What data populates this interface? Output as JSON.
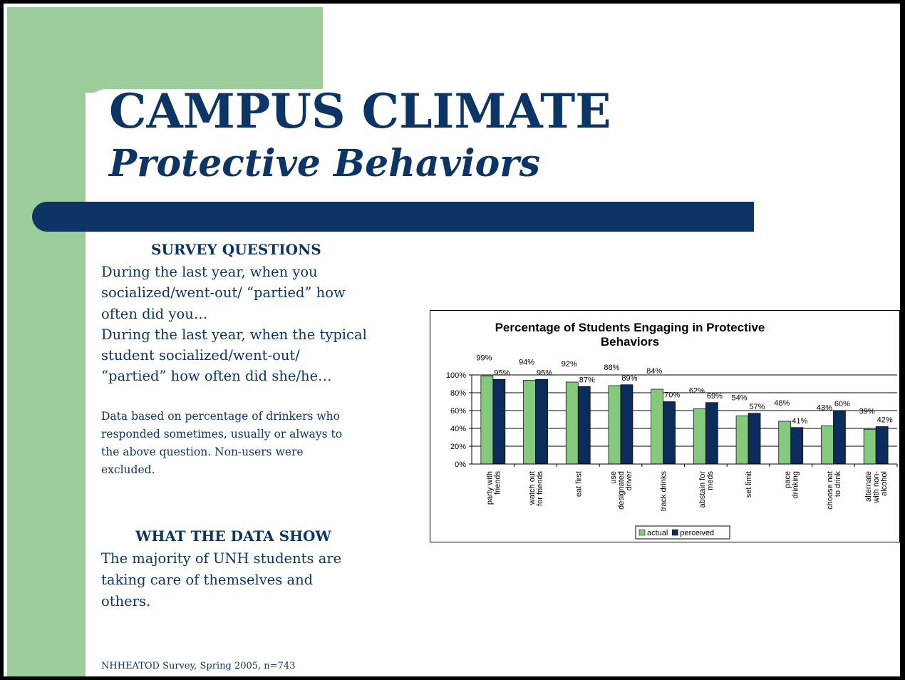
{
  "slide": {
    "title": "CAMPUS CLIMATE",
    "subtitle": "Protective Behaviors",
    "survey_heading": "SURVEY QUESTIONS",
    "survey_lines": [
      "During the last year, when you",
      "socialized/went-out/ “partied” how",
      "often did you…",
      "During the last year, when the typical",
      "student socialized/went-out/",
      "“partied” how often did she/he…"
    ],
    "note_lines": [
      "Data based on percentage of drinkers who",
      "responded sometimes, usually or always to",
      "the above question. Non-users were",
      "excluded."
    ],
    "data_heading": "WHAT THE DATA SHOW",
    "data_lines": [
      "The majority of UNH students are",
      "taking care of themselves and",
      "others."
    ],
    "source": "NHHEATOD Survey, Spring 2005, n=743"
  },
  "chart_data": {
    "type": "bar",
    "title": "Percentage of Students Engaging in Protective Behaviors",
    "categories": [
      [
        "party with",
        "friends"
      ],
      [
        "watch out",
        "for friends"
      ],
      [
        "eat first"
      ],
      [
        "use",
        "designated",
        "driver"
      ],
      [
        "track drinks"
      ],
      [
        "abstain for",
        "meds"
      ],
      [
        "set limit"
      ],
      [
        "pace",
        "drinking"
      ],
      [
        "choose not",
        "to drink"
      ],
      [
        "alternate",
        "with non-",
        "alcohol"
      ]
    ],
    "series": [
      {
        "name": "actual",
        "color": "#84c97e",
        "values": [
          99,
          94,
          92,
          88,
          84,
          62,
          54,
          48,
          43,
          39
        ],
        "value_labels": [
          "99%",
          "94%",
          "92%",
          "88%",
          "84%",
          "62%",
          "54%",
          "48%",
          "43%",
          "39%"
        ]
      },
      {
        "name": "perceived",
        "color": "#0c2d5c",
        "values": [
          95,
          95,
          87,
          89,
          70,
          69,
          57,
          41,
          60,
          42
        ],
        "value_labels": [
          "95%",
          "95%",
          "87%",
          "89%",
          "70%",
          "69%",
          "57%",
          "41%",
          "60%",
          "42%"
        ]
      }
    ],
    "ylim": [
      0,
      100
    ],
    "yticks": [
      {
        "value": 0,
        "label": "0%"
      },
      {
        "value": 20,
        "label": "20%"
      },
      {
        "value": 40,
        "label": "40%"
      },
      {
        "value": 60,
        "label": "60%"
      },
      {
        "value": 80,
        "label": "80%"
      },
      {
        "value": 100,
        "label": "100%"
      }
    ],
    "grid": true,
    "legend": "bottom"
  }
}
